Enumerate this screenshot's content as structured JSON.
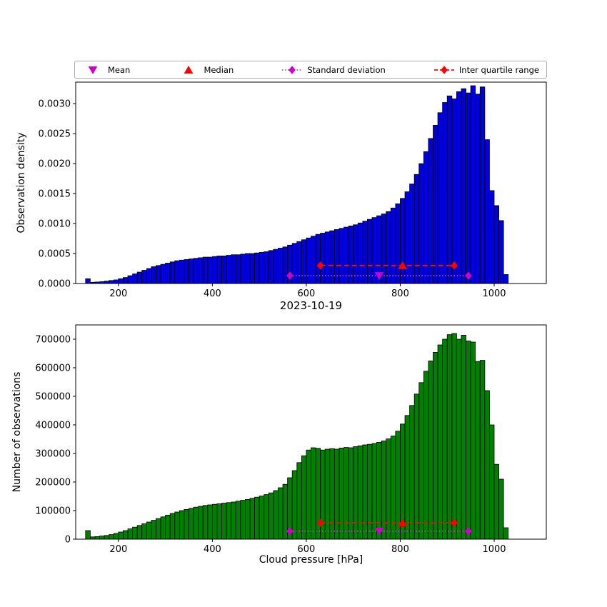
{
  "legend": {
    "items": [
      {
        "label": "Mean",
        "marker": "triangle-down",
        "color": "#CC00CC",
        "line": "none"
      },
      {
        "label": "Median",
        "marker": "triangle-up",
        "color": "#FF0000",
        "line": "none"
      },
      {
        "label": "Standard deviation",
        "marker": "diamond",
        "color": "#CC00CC",
        "line": "dotted",
        "line_color": "#BB44BB"
      },
      {
        "label": "Inter quartile range",
        "marker": "diamond",
        "color": "#FF0000",
        "line": "dashed",
        "line_color": "#EE1111"
      }
    ]
  },
  "chart_data": [
    {
      "type": "bar",
      "title": "",
      "xlabel": "",
      "ylabel": "Observation density",
      "bar_color": "#0000DD",
      "bar_edge_color": "#000000",
      "bin_start": 130,
      "bin_width": 10,
      "xlim": [
        109,
        1111
      ],
      "ylim": [
        0,
        0.00336
      ],
      "xticks": [
        200,
        400,
        600,
        800,
        1000
      ],
      "xtick_labels": [
        "200",
        "400",
        "600",
        "800",
        "1000"
      ],
      "yticks": [
        0,
        0.0005,
        0.001,
        0.0015,
        0.002,
        0.0025,
        0.003
      ],
      "ytick_labels": [
        "0.0000",
        "0.0005",
        "0.0010",
        "0.0015",
        "0.0020",
        "0.0025",
        "0.0030"
      ],
      "values": [
        8e-05,
        2e-05,
        2.5e-05,
        3e-05,
        4e-05,
        5e-05,
        6e-05,
        8e-05,
        0.0001,
        0.00013,
        0.00016,
        0.00019,
        0.00022,
        0.00025,
        0.00028,
        0.0003,
        0.00032,
        0.00034,
        0.00036,
        0.00038,
        0.00039,
        0.0004,
        0.00041,
        0.00042,
        0.00043,
        0.00044,
        0.00044,
        0.00045,
        0.00046,
        0.00046,
        0.00047,
        0.00048,
        0.00048,
        0.00049,
        0.0005,
        0.0005,
        0.00051,
        0.00052,
        0.00053,
        0.00055,
        0.00057,
        0.00059,
        0.00061,
        0.00064,
        0.00067,
        0.0007,
        0.00073,
        0.00076,
        0.00079,
        0.00082,
        0.00084,
        0.00086,
        0.00088,
        0.0009,
        0.00092,
        0.00094,
        0.00096,
        0.00098,
        0.00101,
        0.00104,
        0.00107,
        0.0011,
        0.00113,
        0.00116,
        0.0012,
        0.00126,
        0.00133,
        0.00142,
        0.00153,
        0.00166,
        0.00182,
        0.002,
        0.0022,
        0.00242,
        0.00264,
        0.00285,
        0.00302,
        0.00313,
        0.00308,
        0.0032,
        0.00325,
        0.00318,
        0.0033,
        0.00316,
        0.00328,
        0.0024,
        0.00155,
        0.0013,
        0.00105,
        0.00015
      ],
      "annotations": {
        "mean": {
          "x": 755,
          "y": 0.00013
        },
        "median": {
          "x": 805,
          "y": 0.0003
        },
        "std_range": {
          "x1": 565,
          "x2": 945,
          "y": 0.00013
        },
        "iqr_range": {
          "x1": 630,
          "x2": 915,
          "y": 0.0003
        }
      }
    },
    {
      "type": "bar",
      "title": "2023-10-19",
      "xlabel": "Cloud pressure [hPa]",
      "ylabel": "Number of observations",
      "bar_color": "#008000",
      "bar_edge_color": "#000000",
      "bin_start": 130,
      "bin_width": 10,
      "xlim": [
        109,
        1111
      ],
      "ylim": [
        0,
        750000
      ],
      "xticks": [
        200,
        400,
        600,
        800,
        1000
      ],
      "xtick_labels": [
        "200",
        "400",
        "600",
        "800",
        "1000"
      ],
      "yticks": [
        0,
        100000,
        200000,
        300000,
        400000,
        500000,
        600000,
        700000
      ],
      "ytick_labels": [
        "0",
        "100000",
        "200000",
        "300000",
        "400000",
        "500000",
        "600000",
        "700000"
      ],
      "values": [
        30000,
        8000,
        9000,
        11000,
        13000,
        16000,
        20000,
        25000,
        30000,
        36000,
        42000,
        48000,
        54000,
        60000,
        66000,
        72000,
        78000,
        84000,
        90000,
        95000,
        100000,
        104000,
        108000,
        112000,
        115000,
        118000,
        120000,
        122000,
        124000,
        126000,
        128000,
        130000,
        133000,
        136000,
        139000,
        143000,
        147000,
        151000,
        156000,
        162000,
        170000,
        180000,
        192000,
        215000,
        240000,
        268000,
        292000,
        312000,
        320000,
        318000,
        312000,
        315000,
        317000,
        315000,
        319000,
        321000,
        320000,
        324000,
        327000,
        330000,
        332000,
        335000,
        339000,
        344000,
        351000,
        361000,
        378000,
        403000,
        433000,
        468000,
        508000,
        548000,
        588000,
        624000,
        654000,
        680000,
        700000,
        716000,
        720000,
        700000,
        714000,
        694000,
        690000,
        622000,
        626000,
        520000,
        400000,
        262000,
        210000,
        40000
      ],
      "annotations": {
        "mean": {
          "x": 755,
          "y": 28000
        },
        "median": {
          "x": 805,
          "y": 57000
        },
        "std_range": {
          "x1": 565,
          "x2": 945,
          "y": 28000
        },
        "iqr_range": {
          "x1": 630,
          "x2": 915,
          "y": 57000
        }
      }
    }
  ]
}
